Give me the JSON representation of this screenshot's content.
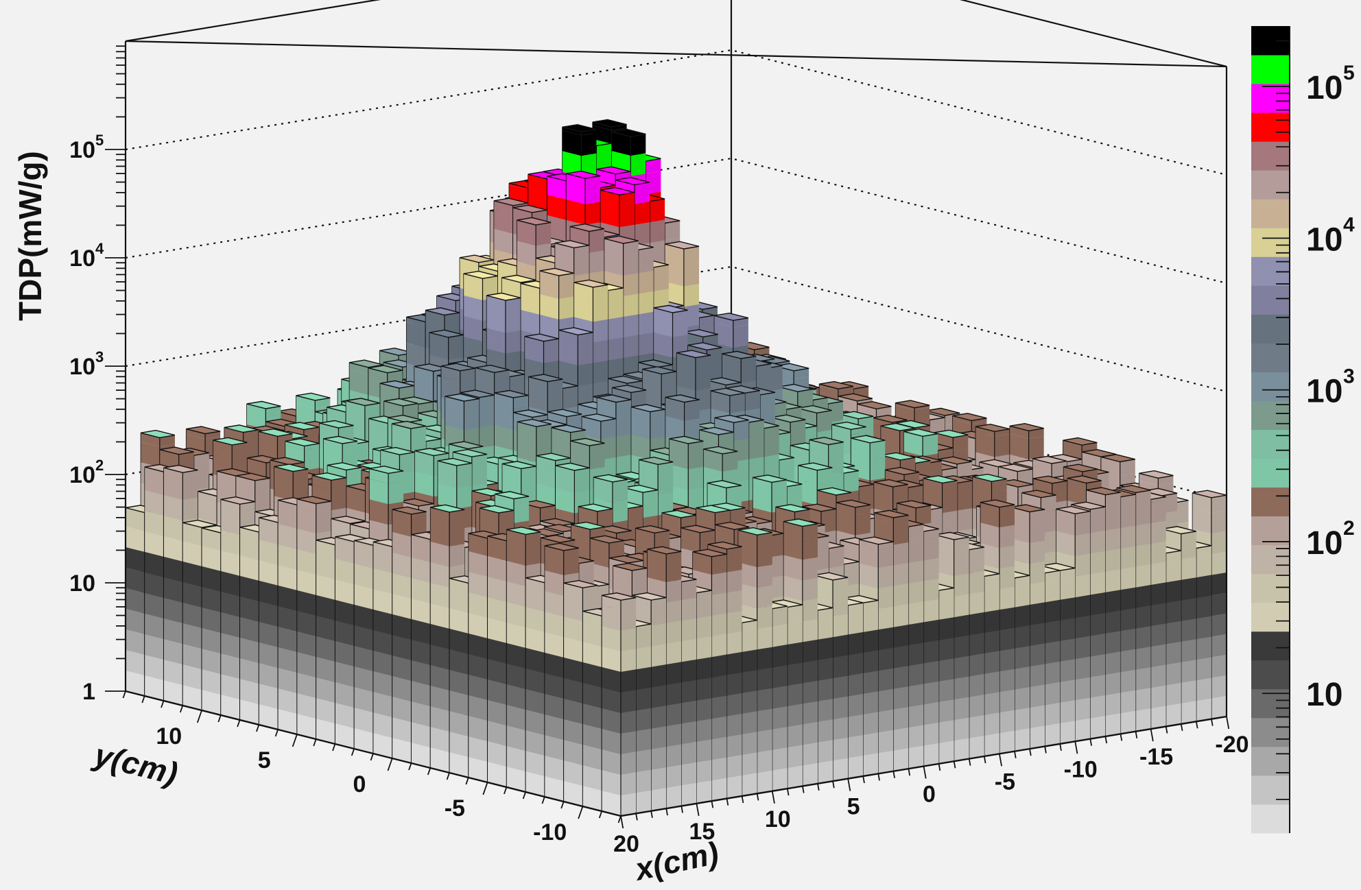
{
  "chart_data": {
    "type": "lego3d",
    "title": "",
    "xlabel": "x(cm)",
    "ylabel": "y(cm)",
    "zlabel": "TDP(mW/g)",
    "x_range": [
      20,
      -20
    ],
    "y_range": [
      13,
      -13
    ],
    "z_log": true,
    "z_range": [
      1,
      1000000
    ],
    "x_ticks": [
      {
        "value": 20,
        "label": "20"
      },
      {
        "value": 15,
        "label": "15"
      },
      {
        "value": 10,
        "label": "10"
      },
      {
        "value": 5,
        "label": "5"
      },
      {
        "value": 0,
        "label": "0"
      },
      {
        "value": -5,
        "label": "-5"
      },
      {
        "value": -10,
        "label": "-10"
      },
      {
        "value": -15,
        "label": "-15"
      },
      {
        "value": -20,
        "label": "-20"
      }
    ],
    "y_ticks": [
      {
        "value": 10,
        "label": "10"
      },
      {
        "value": 5,
        "label": "5"
      },
      {
        "value": 0,
        "label": "0"
      },
      {
        "value": -5,
        "label": "-5"
      },
      {
        "value": -10,
        "label": "-10"
      }
    ],
    "z_ticks": [
      {
        "value": 1,
        "label": "1",
        "exp": ""
      },
      {
        "value": 10,
        "label": "10",
        "exp": ""
      },
      {
        "value": 100,
        "label": "10",
        "exp": "2"
      },
      {
        "value": 1000,
        "label": "10",
        "exp": "3"
      },
      {
        "value": 10000,
        "label": "10",
        "exp": "4"
      },
      {
        "value": 100000,
        "label": "10",
        "exp": "5"
      }
    ],
    "palette_labels": [
      {
        "value": 10,
        "label": "10",
        "exp": ""
      },
      {
        "value": 100,
        "label": "10",
        "exp": "2"
      },
      {
        "value": 1000,
        "label": "10",
        "exp": "3"
      },
      {
        "value": 10000,
        "label": "10",
        "exp": "4"
      },
      {
        "value": 100000,
        "label": "10",
        "exp": "5"
      }
    ],
    "palette": {
      "z_min": 1.2,
      "z_max": 250000,
      "colors": [
        "#dcdcdc",
        "#c4c4c4",
        "#a8a8a8",
        "#8c8c8c",
        "#6a6a6a",
        "#4c4c4c",
        "#3a3a3a",
        "#d2cdb2",
        "#c7c2aa",
        "#bfb2a6",
        "#b5a099",
        "#8e6a5b",
        "#7fc6a6",
        "#7fbea2",
        "#7c9b8c",
        "#7a8f9c",
        "#6f7c88",
        "#66737f",
        "#80809e",
        "#9090b0",
        "#d8d094",
        "#c8b094",
        "#b49c9a",
        "#a4787c",
        "#ff0000",
        "#ff00ff",
        "#00ff00",
        "#000000"
      ]
    },
    "grid": "dotted"
  }
}
